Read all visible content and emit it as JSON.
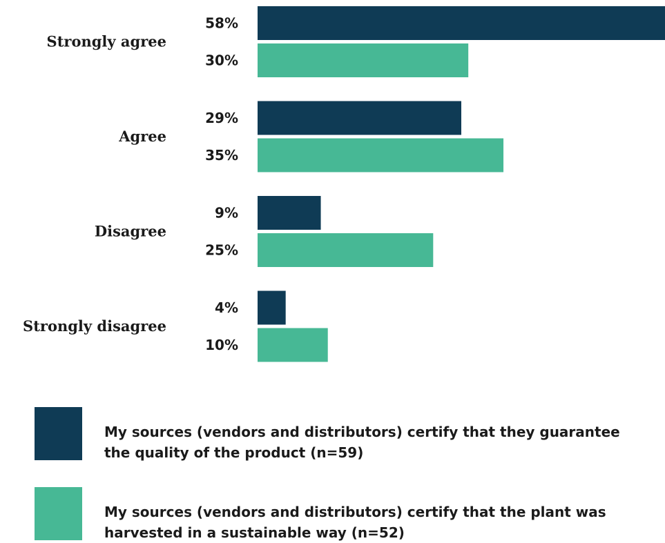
{
  "chart_data": {
    "type": "bar",
    "orientation": "horizontal",
    "categories": [
      "Strongly agree",
      "Agree",
      "Disagree",
      "Strongly disagree"
    ],
    "series": [
      {
        "name": "My sources (vendors and distributors) certify that they guarantee the quality of the product (n=59)",
        "values": [
          58,
          29,
          9,
          4
        ],
        "labels": [
          "58%",
          "29%",
          "9%",
          "4%"
        ],
        "color": "#0f3b55"
      },
      {
        "name": "My sources (vendors and distributors) certify that the plant was harvested in a sustainable way (n=52)",
        "values": [
          30,
          35,
          25,
          10
        ],
        "labels": [
          "30%",
          "35%",
          "25%",
          "10%"
        ],
        "color": "#47b895"
      }
    ],
    "unit": "%",
    "xlim": [
      0,
      58
    ],
    "grid": false,
    "legend_position": "bottom"
  }
}
